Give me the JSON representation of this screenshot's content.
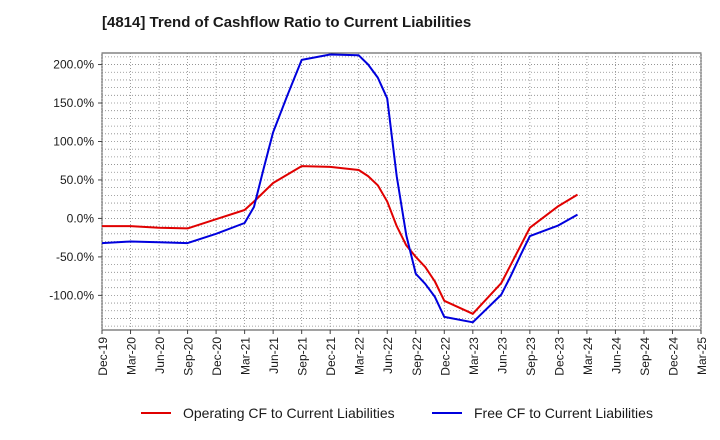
{
  "chart_data": {
    "type": "line",
    "title": "[4814]  Trend of Cashflow Ratio to Current Liabilities",
    "x_categories": [
      "Dec-19",
      "Mar-20",
      "Jun-20",
      "Sep-20",
      "Dec-20",
      "Mar-21",
      "Jun-21",
      "Sep-21",
      "Dec-21",
      "Mar-22",
      "Jun-22",
      "Sep-22",
      "Dec-22",
      "Mar-23",
      "Jun-23",
      "Sep-23",
      "Dec-23",
      "Mar-24",
      "Jun-24",
      "Sep-24",
      "Dec-24",
      "Mar-25"
    ],
    "y_ticks": [
      "200.0%",
      "150.0%",
      "100.0%",
      "50.0%",
      "0.0%",
      "-50.0%",
      "-100.0%"
    ],
    "y_tick_values": [
      200,
      150,
      100,
      50,
      0,
      -50,
      -100
    ],
    "ylim": [
      -145,
      215
    ],
    "grid": true,
    "legend_position": "bottom",
    "series": [
      {
        "name": "Operating CF to Current Liabilities",
        "color": "#e00000",
        "points": [
          [
            0,
            -10
          ],
          [
            1,
            -10
          ],
          [
            2,
            -12
          ],
          [
            3,
            -13
          ],
          [
            4,
            -1
          ],
          [
            5,
            11
          ],
          [
            5.33,
            22
          ],
          [
            6,
            46
          ],
          [
            7,
            68
          ],
          [
            8,
            67
          ],
          [
            9,
            63
          ],
          [
            9.33,
            55
          ],
          [
            9.67,
            43
          ],
          [
            10,
            22
          ],
          [
            10.33,
            -10
          ],
          [
            10.67,
            -35
          ],
          [
            11,
            -50
          ],
          [
            11.33,
            -63
          ],
          [
            11.67,
            -82
          ],
          [
            12,
            -107
          ],
          [
            13,
            -124
          ],
          [
            14,
            -84
          ],
          [
            15,
            -12
          ],
          [
            16,
            16
          ],
          [
            16.67,
            31
          ]
        ]
      },
      {
        "name": "Free CF to Current Liabilities",
        "color": "#0000dd",
        "points": [
          [
            0,
            -32
          ],
          [
            1,
            -30
          ],
          [
            2,
            -31
          ],
          [
            3,
            -32
          ],
          [
            4,
            -20
          ],
          [
            5,
            -6
          ],
          [
            5.33,
            15
          ],
          [
            5.67,
            65
          ],
          [
            6,
            112
          ],
          [
            6.5,
            160
          ],
          [
            7,
            206
          ],
          [
            8,
            213
          ],
          [
            9,
            212
          ],
          [
            9.33,
            200
          ],
          [
            9.67,
            183
          ],
          [
            10,
            156
          ],
          [
            10.33,
            55
          ],
          [
            10.67,
            -22
          ],
          [
            11,
            -72
          ],
          [
            11.33,
            -85
          ],
          [
            11.67,
            -102
          ],
          [
            12,
            -128
          ],
          [
            13,
            -135
          ],
          [
            14,
            -99
          ],
          [
            14.33,
            -75
          ],
          [
            14.67,
            -48
          ],
          [
            15,
            -23
          ],
          [
            16,
            -9
          ],
          [
            16.67,
            5
          ]
        ]
      }
    ]
  }
}
